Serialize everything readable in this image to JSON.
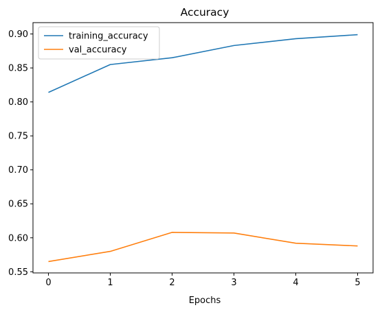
{
  "chart_data": {
    "type": "line",
    "title": "Accuracy",
    "xlabel": "Epochs",
    "ylabel": "",
    "x": [
      0,
      1,
      2,
      3,
      4,
      5
    ],
    "xticks": [
      "0",
      "1",
      "2",
      "3",
      "4",
      "5"
    ],
    "xlim": [
      -0.25,
      5.25
    ],
    "ylim": [
      0.5483,
      0.9167
    ],
    "yticks": [
      "0.55",
      "0.60",
      "0.65",
      "0.70",
      "0.75",
      "0.80",
      "0.85",
      "0.90"
    ],
    "ytick_values": [
      0.55,
      0.6,
      0.65,
      0.7,
      0.75,
      0.8,
      0.85,
      0.9
    ],
    "grid": false,
    "legend_position": "top-left",
    "series": [
      {
        "name": "training_accuracy",
        "color": "#1f77b4",
        "values": [
          0.814,
          0.855,
          0.865,
          0.883,
          0.893,
          0.899
        ]
      },
      {
        "name": "val_accuracy",
        "color": "#ff7f0e",
        "values": [
          0.565,
          0.58,
          0.608,
          0.607,
          0.592,
          0.588
        ]
      }
    ]
  }
}
